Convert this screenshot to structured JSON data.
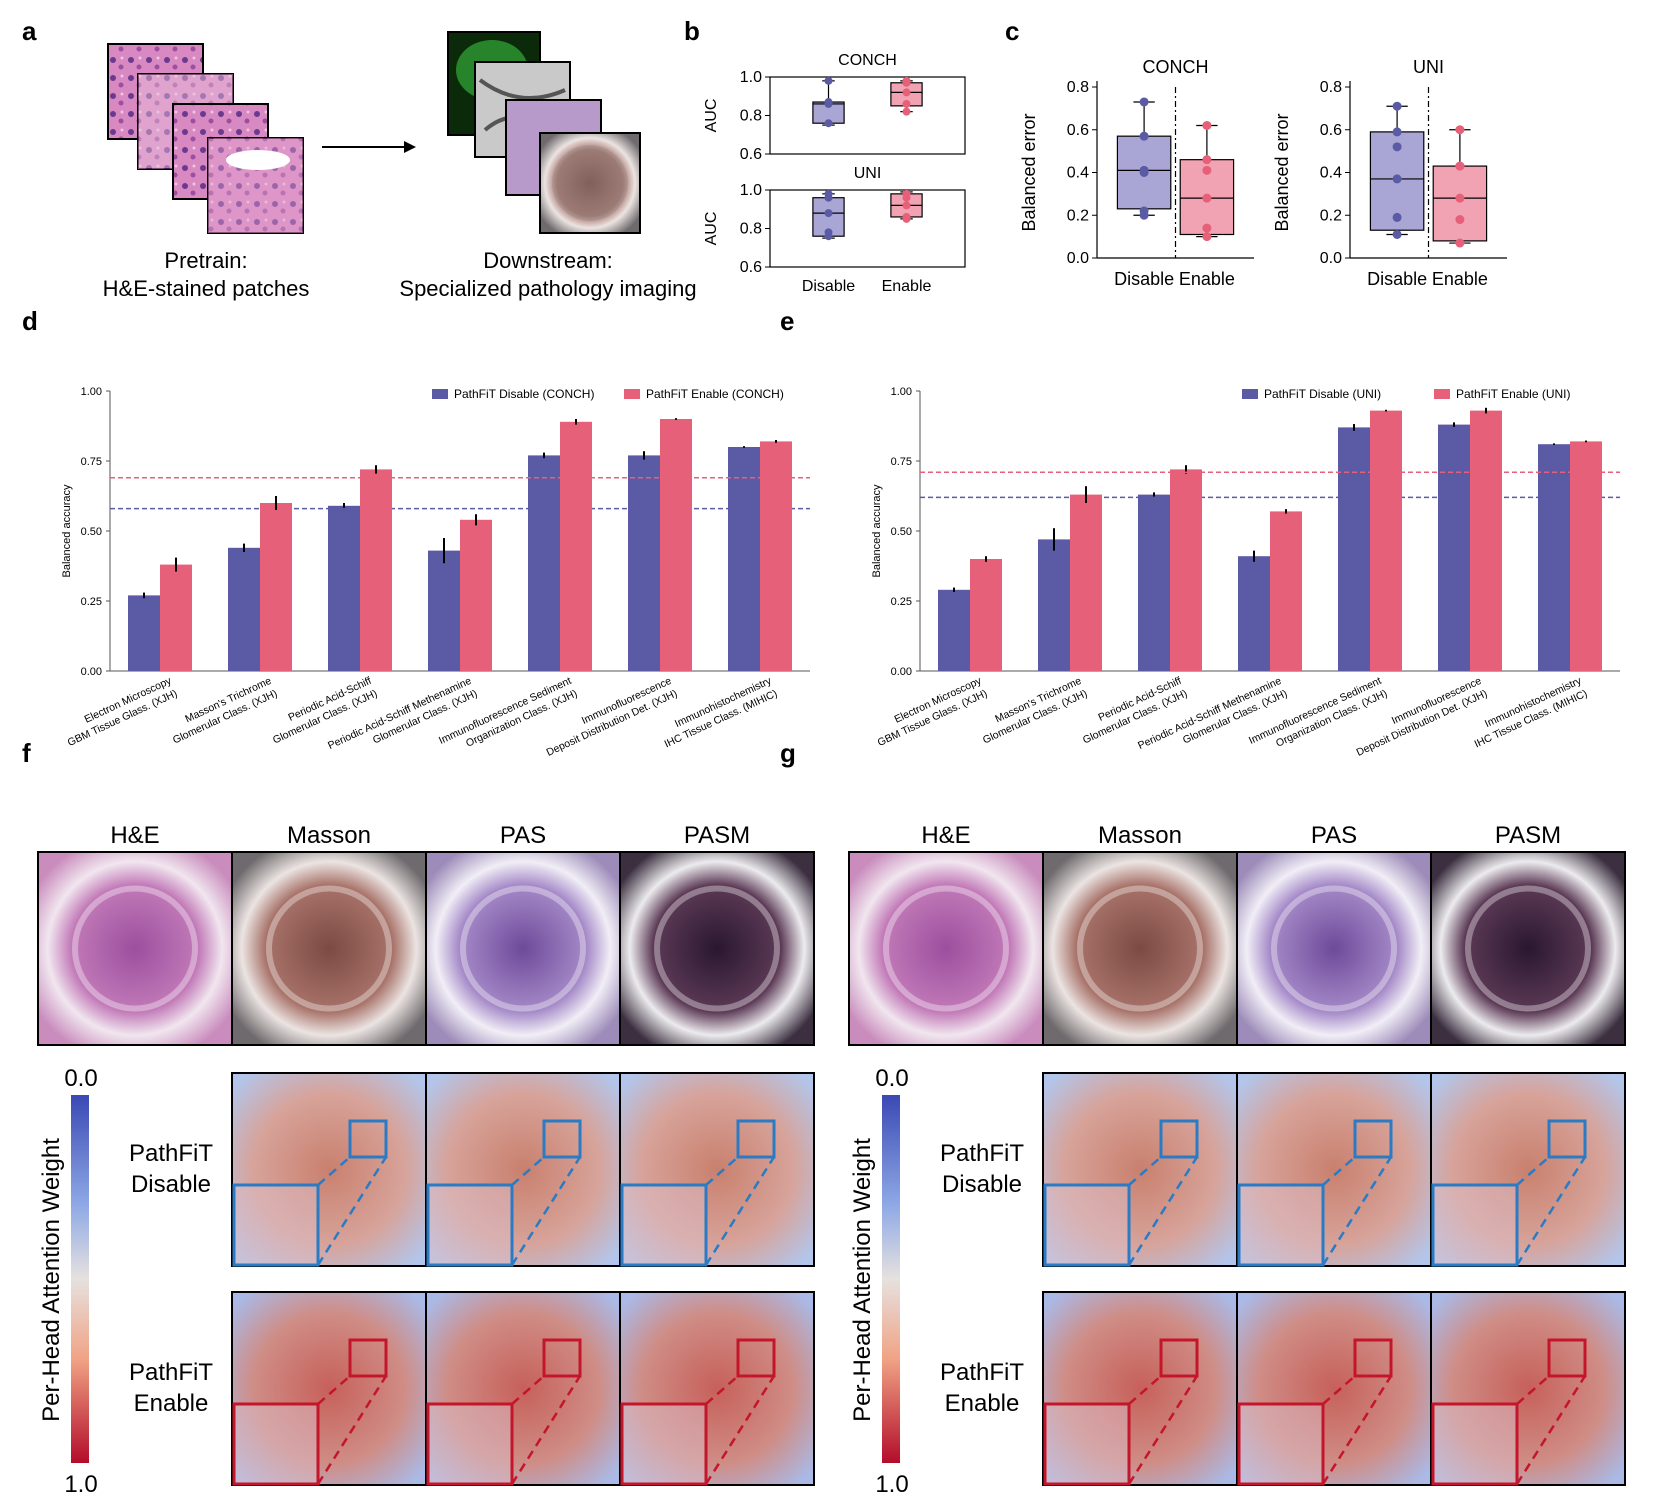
{
  "colors": {
    "purple": "#5b5aa4",
    "pink": "#e6607a",
    "purple_light": "#a9a6d6",
    "pink_light": "#f2a3b3",
    "blue_box": "#2a7bc4",
    "red_box": "#c4162a"
  },
  "panel_a": {
    "label": "a",
    "pretrain_line1": "Pretrain:",
    "pretrain_line2": "H&E-stained patches",
    "down_line1": "Downstream:",
    "down_line2": "Specialized pathology imaging"
  },
  "panel_f": {
    "label": "f"
  },
  "panel_g": {
    "label": "g"
  },
  "stains": [
    "H&E",
    "Masson",
    "PAS",
    "PASM"
  ],
  "attn": {
    "title": "Per-Head Attention Weight",
    "min": "0.0",
    "max": "1.0",
    "disable_l1": "PathFiT",
    "disable_l2": "Disable",
    "enable_l1": "PathFiT",
    "enable_l2": "Enable"
  },
  "chart_data": [
    {
      "id": "b",
      "type": "box",
      "label": "b",
      "panels": [
        {
          "title": "CONCH",
          "ylabel": "AUC",
          "ylim": [
            0.6,
            1.0
          ],
          "yticks": [
            "0.6",
            "0.8",
            "1.0"
          ],
          "categories": [
            "Disable",
            "Enable"
          ],
          "boxes": [
            {
              "q1": 0.76,
              "median": 0.86,
              "q3": 0.87,
              "min": 0.75,
              "max": 0.98,
              "points": [
                0.76,
                0.86,
                0.87,
                0.98
              ]
            },
            {
              "q1": 0.85,
              "median": 0.92,
              "q3": 0.97,
              "min": 0.82,
              "max": 0.98,
              "points": [
                0.82,
                0.86,
                0.92,
                0.97,
                0.98
              ]
            }
          ]
        },
        {
          "title": "UNI",
          "ylabel": "AUC",
          "ylim": [
            0.6,
            1.0
          ],
          "yticks": [
            "0.6",
            "0.8",
            "1.0"
          ],
          "categories": [
            "Disable",
            "Enable"
          ],
          "boxes": [
            {
              "q1": 0.76,
              "median": 0.88,
              "q3": 0.96,
              "min": 0.75,
              "max": 0.98,
              "points": [
                0.76,
                0.78,
                0.88,
                0.96,
                0.98
              ]
            },
            {
              "q1": 0.86,
              "median": 0.92,
              "q3": 0.98,
              "min": 0.85,
              "max": 0.99,
              "points": [
                0.85,
                0.86,
                0.92,
                0.96,
                0.98
              ]
            }
          ]
        }
      ]
    },
    {
      "id": "c",
      "type": "box",
      "label": "c",
      "panels": [
        {
          "title": "CONCH",
          "ylabel": "Balanced error",
          "ylim": [
            0.0,
            0.8
          ],
          "yticks": [
            "0.0",
            "0.2",
            "0.4",
            "0.6",
            "0.8"
          ],
          "categories": [
            "Disable",
            "Enable"
          ],
          "boxes": [
            {
              "q1": 0.23,
              "median": 0.41,
              "q3": 0.57,
              "min": 0.2,
              "max": 0.73,
              "points": [
                0.2,
                0.22,
                0.4,
                0.41,
                0.57,
                0.73
              ]
            },
            {
              "q1": 0.11,
              "median": 0.28,
              "q3": 0.46,
              "min": 0.1,
              "max": 0.62,
              "points": [
                0.1,
                0.14,
                0.28,
                0.41,
                0.46,
                0.62
              ]
            }
          ]
        },
        {
          "title": "UNI",
          "ylabel": "Balanced error",
          "ylim": [
            0.0,
            0.8
          ],
          "yticks": [
            "0.0",
            "0.2",
            "0.4",
            "0.6",
            "0.8"
          ],
          "categories": [
            "Disable",
            "Enable"
          ],
          "boxes": [
            {
              "q1": 0.13,
              "median": 0.37,
              "q3": 0.59,
              "min": 0.11,
              "max": 0.71,
              "points": [
                0.11,
                0.19,
                0.37,
                0.52,
                0.59,
                0.71
              ]
            },
            {
              "q1": 0.08,
              "median": 0.28,
              "q3": 0.43,
              "min": 0.07,
              "max": 0.6,
              "points": [
                0.07,
                0.18,
                0.28,
                0.43,
                0.43,
                0.6
              ]
            }
          ]
        }
      ]
    },
    {
      "id": "d",
      "type": "bar",
      "label": "d",
      "ylabel": "Balanced accuracy",
      "ylim": [
        0.0,
        1.0
      ],
      "yticks": [
        "0.00",
        "0.25",
        "0.50",
        "0.75",
        "1.00"
      ],
      "categories": [
        [
          "Electron Microscopy",
          "GBM Tissue Glass. (XJH)"
        ],
        [
          "Masson's Trichrome",
          "Glomerular Class. (XJH)"
        ],
        [
          "Periodic Acid-Schiff",
          "Glomerular Class. (XJH)"
        ],
        [
          "Periodic Acid-Schiff Methenamine",
          "Glomerular Class. (XJH)"
        ],
        [
          "Immunofluorescence Sediment",
          "Organization Class. (XJH)"
        ],
        [
          "Immunofluorescence",
          "Deposit Distribution Det. (XJH)"
        ],
        [
          "Immunohistochemistry",
          "IHC Tissue Class. (MIHIC)"
        ]
      ],
      "series": [
        {
          "name": "PathFiT Disable (CONCH)",
          "values": [
            0.27,
            0.44,
            0.59,
            0.43,
            0.77,
            0.77,
            0.8
          ],
          "err": [
            0.01,
            0.015,
            0.01,
            0.045,
            0.01,
            0.015,
            0.003
          ],
          "mean": 0.58
        },
        {
          "name": "PathFiT Enable (CONCH)",
          "values": [
            0.38,
            0.6,
            0.72,
            0.54,
            0.89,
            0.9,
            0.82
          ],
          "err": [
            0.025,
            0.025,
            0.015,
            0.02,
            0.01,
            0.003,
            0.005
          ],
          "mean": 0.69
        }
      ]
    },
    {
      "id": "e",
      "type": "bar",
      "label": "e",
      "ylabel": "Balanced accuracy",
      "ylim": [
        0.0,
        1.0
      ],
      "yticks": [
        "0.00",
        "0.25",
        "0.50",
        "0.75",
        "1.00"
      ],
      "categories": [
        [
          "Electron Microscopy",
          "GBM Tissue Glass. (XJH)"
        ],
        [
          "Masson's Trichrome",
          "Glomerular Class. (XJH)"
        ],
        [
          "Periodic Acid-Schiff",
          "Glomerular Class. (XJH)"
        ],
        [
          "Periodic Acid-Schiff Methenamine",
          "Glomerular Class. (XJH)"
        ],
        [
          "Immunofluorescence Sediment",
          "Organization Class. (XJH)"
        ],
        [
          "Immunofluorescence",
          "Deposit Distribution Det. (XJH)"
        ],
        [
          "Immunohistochemistry",
          "IHC Tissue Class. (MIHIC)"
        ]
      ],
      "series": [
        {
          "name": "PathFiT Disable (UNI)",
          "values": [
            0.29,
            0.47,
            0.63,
            0.41,
            0.87,
            0.88,
            0.81
          ],
          "err": [
            0.008,
            0.04,
            0.008,
            0.02,
            0.012,
            0.008,
            0.003
          ],
          "mean": 0.62
        },
        {
          "name": "PathFiT Enable (UNI)",
          "values": [
            0.4,
            0.63,
            0.72,
            0.57,
            0.93,
            0.93,
            0.82
          ],
          "err": [
            0.01,
            0.03,
            0.015,
            0.008,
            0.003,
            0.01,
            0.003
          ],
          "mean": 0.71
        }
      ]
    }
  ]
}
